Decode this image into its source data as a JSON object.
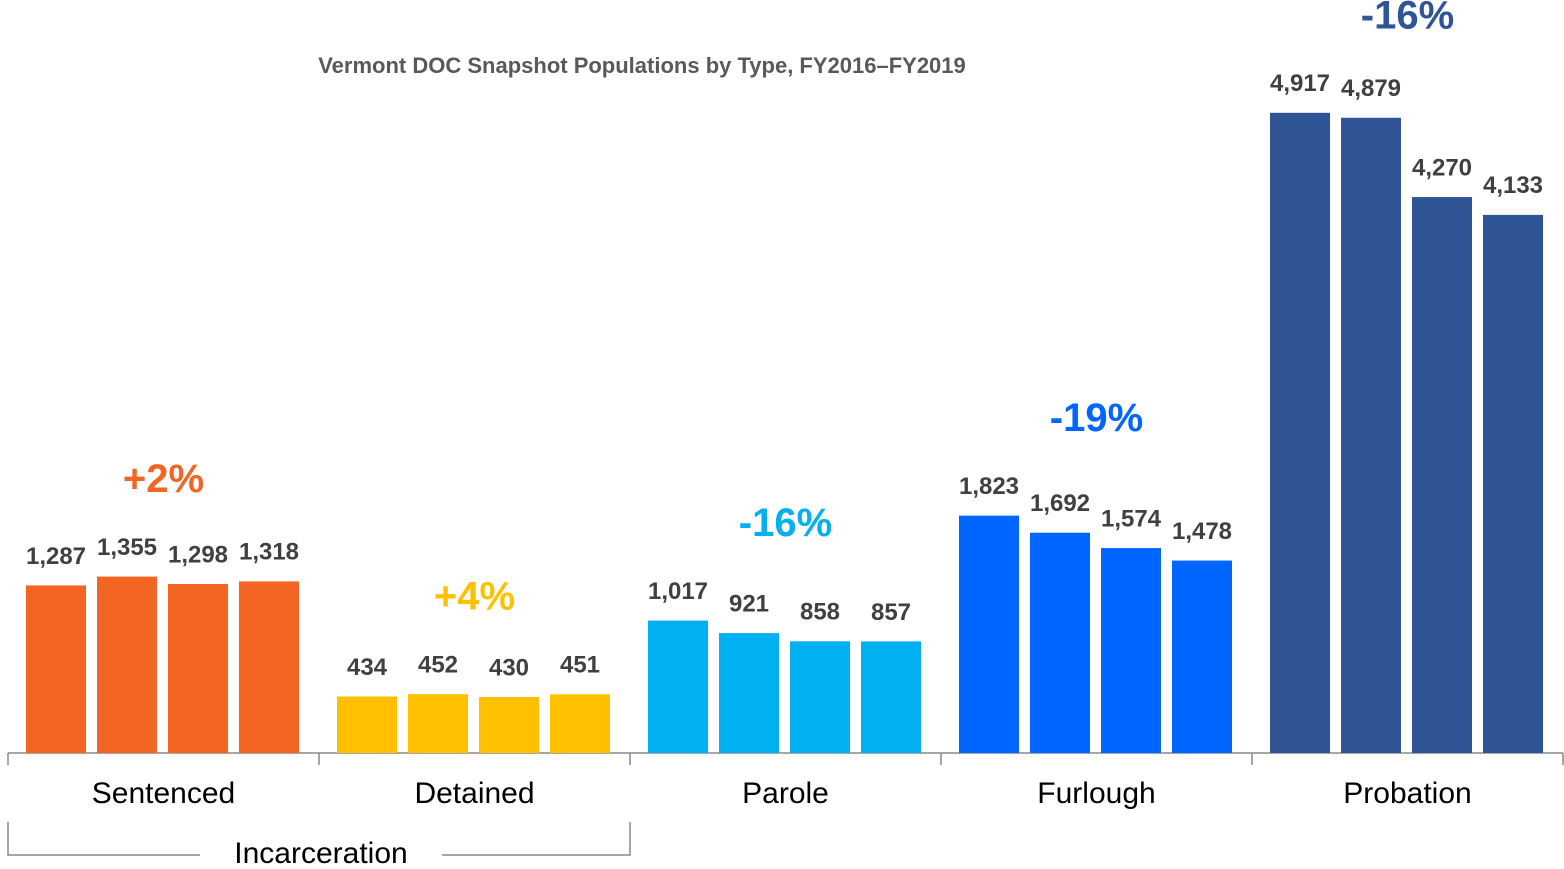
{
  "chart_data": {
    "type": "bar",
    "title": "Vermont DOC Snapshot Populations by Type, FY2016–FY2019",
    "ylim": [
      0,
      5000
    ],
    "groups": [
      {
        "name": "Sentenced",
        "color": "#f26522",
        "values": [
          1287,
          1355,
          1298,
          1318
        ],
        "value_labels": [
          "1,287",
          "1,355",
          "1,298",
          "1,318"
        ],
        "change": "+2%"
      },
      {
        "name": "Detained",
        "color": "#ffc000",
        "values": [
          434,
          452,
          430,
          451
        ],
        "change": "+4%"
      },
      {
        "name": "Parole",
        "color": "#00b0f0",
        "values": [
          1017,
          921,
          858,
          857
        ],
        "value_labels": [
          "1,017",
          "921",
          "858",
          "857"
        ],
        "change": "-16%"
      },
      {
        "name": "Furlough",
        "color": "#0066ff",
        "values": [
          1823,
          1692,
          1574,
          1478
        ],
        "value_labels": [
          "1,823",
          "1,692",
          "1,574",
          "1,478"
        ],
        "change": "-19%"
      },
      {
        "name": "Probation",
        "color": "#2f5597",
        "values": [
          4917,
          4879,
          4270,
          4133
        ],
        "value_labels": [
          "4,917",
          "4,879",
          "4,270",
          "4,133"
        ],
        "change": "-16%"
      }
    ],
    "bracket_label": "Incarceration"
  }
}
